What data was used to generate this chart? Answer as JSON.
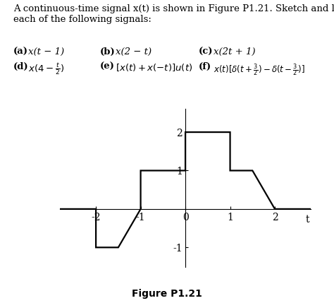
{
  "title_text": "Figure P1.21",
  "signal_points": [
    [
      -3,
      0
    ],
    [
      -2,
      0
    ],
    [
      -2,
      -1
    ],
    [
      -1.5,
      -1
    ],
    [
      -1,
      0
    ],
    [
      -1,
      1
    ],
    [
      0,
      1
    ],
    [
      0,
      2
    ],
    [
      1,
      2
    ],
    [
      1,
      1
    ],
    [
      1.5,
      1
    ],
    [
      2,
      0
    ],
    [
      3,
      0
    ]
  ],
  "xlim": [
    -2.8,
    2.8
  ],
  "ylim": [
    -1.5,
    2.6
  ],
  "xticks": [
    -2,
    -1,
    0,
    1,
    2
  ],
  "yticks": [
    -1,
    1,
    2
  ],
  "xlabel": "t",
  "axis_color": "#000000",
  "signal_color": "#000000",
  "background_color": "#ffffff",
  "linewidth": 1.6,
  "fontsize_ticks": 10,
  "fontsize_title": 11,
  "fontsize_header": 10
}
